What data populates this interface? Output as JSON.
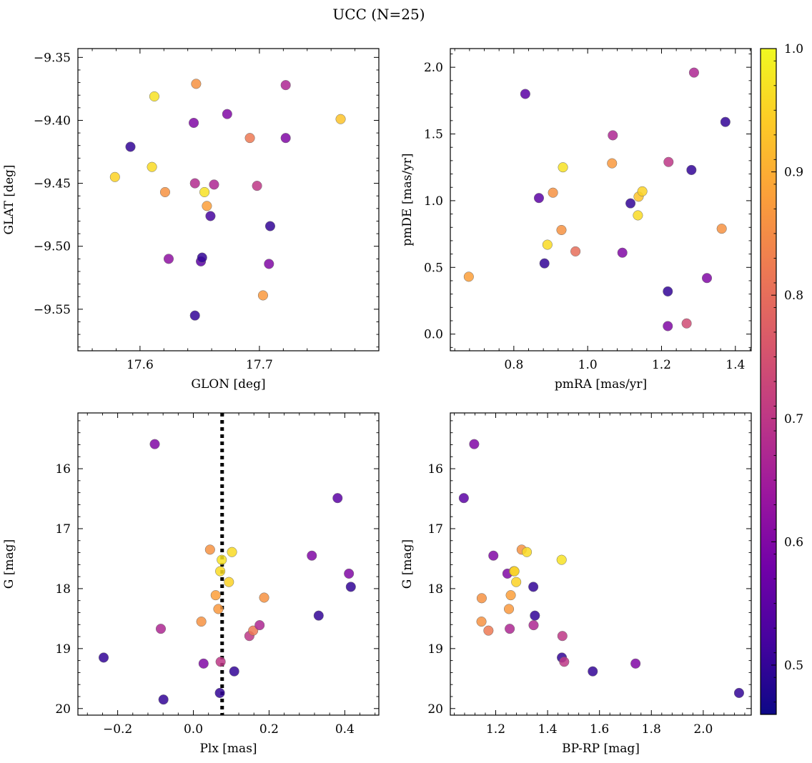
{
  "figure": {
    "title": "UCC (N=25)"
  },
  "colorbar": {
    "ticks": [
      0.5,
      0.6,
      0.7,
      0.8,
      0.9,
      1.0
    ],
    "tick_labels": [
      "0.5",
      "0.6",
      "0.7",
      "0.8",
      "0.9",
      "1.0"
    ],
    "range": [
      0.46,
      1.0
    ],
    "colormap": [
      "#0d0887",
      "#46039f",
      "#7201a8",
      "#9c179e",
      "#bd3786",
      "#d8576b",
      "#ed7953",
      "#fb9f3a",
      "#fdca26",
      "#f0f921"
    ]
  },
  "chart_data": [
    {
      "type": "scatter",
      "name": "glon-glat",
      "xlabel": "GLON [deg]",
      "ylabel": "GLAT [deg]",
      "xlim": [
        17.548,
        17.8
      ],
      "ylim": [
        -9.583,
        -9.343
      ],
      "invert_y": false,
      "xticks": [
        17.6,
        17.7
      ],
      "xtick_labels": [
        "17.6",
        "17.7"
      ],
      "yticks": [
        -9.35,
        -9.4,
        -9.45,
        -9.5,
        -9.55
      ],
      "ytick_labels": [
        "−9.35",
        "−9.40",
        "−9.45",
        "−9.50",
        "−9.55"
      ],
      "x": [
        17.579,
        17.592,
        17.61,
        17.612,
        17.621,
        17.624,
        17.645,
        17.646,
        17.646,
        17.647,
        17.651,
        17.652,
        17.654,
        17.656,
        17.659,
        17.662,
        17.673,
        17.692,
        17.698,
        17.703,
        17.708,
        17.709,
        17.722,
        17.722,
        17.768
      ],
      "y": [
        -9.445,
        -9.421,
        -9.437,
        -9.381,
        -9.457,
        -9.51,
        -9.402,
        -9.45,
        -9.555,
        -9.371,
        -9.512,
        -9.509,
        -9.457,
        -9.468,
        -9.476,
        -9.451,
        -9.395,
        -9.414,
        -9.452,
        -9.539,
        -9.514,
        -9.484,
        -9.414,
        -9.372,
        -9.399
      ],
      "c": [
        0.95,
        0.5,
        0.96,
        0.97,
        0.86,
        0.62,
        0.6,
        0.68,
        0.5,
        0.86,
        0.55,
        0.5,
        0.97,
        0.88,
        0.52,
        0.67,
        0.6,
        0.82,
        0.7,
        0.87,
        0.6,
        0.5,
        0.6,
        0.67,
        0.93
      ]
    },
    {
      "type": "scatter",
      "name": "pm",
      "xlabel": "pmRA [mas/yr]",
      "ylabel": "pmDE [mas/yr]",
      "xlim": [
        0.628,
        1.443
      ],
      "ylim": [
        -0.125,
        2.14
      ],
      "invert_y": false,
      "xticks": [
        0.8,
        1.0,
        1.2,
        1.4
      ],
      "xtick_labels": [
        "0.8",
        "1.0",
        "1.2",
        "1.4"
      ],
      "yticks": [
        0.0,
        0.5,
        1.0,
        1.5,
        2.0
      ],
      "ytick_labels": [
        "0.0",
        "0.5",
        "1.0",
        "1.5",
        "2.0"
      ],
      "x": [
        0.678,
        0.831,
        0.868,
        0.883,
        0.891,
        0.906,
        0.929,
        0.933,
        0.967,
        1.066,
        1.068,
        1.094,
        1.116,
        1.136,
        1.138,
        1.148,
        1.217,
        1.217,
        1.219,
        1.268,
        1.281,
        1.288,
        1.323,
        1.363,
        1.373
      ],
      "y": [
        0.43,
        1.8,
        1.02,
        0.53,
        0.67,
        1.06,
        0.78,
        1.25,
        0.62,
        1.28,
        1.49,
        0.61,
        0.98,
        0.89,
        1.03,
        1.07,
        0.32,
        0.06,
        1.29,
        0.08,
        1.23,
        1.96,
        0.42,
        0.79,
        1.59
      ],
      "c": [
        0.88,
        0.55,
        0.55,
        0.5,
        0.96,
        0.86,
        0.86,
        0.97,
        0.8,
        0.87,
        0.67,
        0.6,
        0.5,
        0.96,
        0.93,
        0.95,
        0.5,
        0.6,
        0.7,
        0.74,
        0.5,
        0.67,
        0.6,
        0.86,
        0.5
      ]
    },
    {
      "type": "scatter",
      "name": "plx-g",
      "xlabel": "Plx [mas]",
      "ylabel": "G [mag]",
      "xlim": [
        -0.305,
        0.49
      ],
      "ylim": [
        15.07,
        20.11
      ],
      "invert_y": true,
      "xticks": [
        -0.2,
        0.0,
        0.2,
        0.4
      ],
      "xtick_labels": [
        "−0.2",
        "0.0",
        "0.2",
        "0.4"
      ],
      "yticks": [
        16,
        17,
        18,
        19,
        20
      ],
      "ytick_labels": [
        "16",
        "17",
        "18",
        "19",
        "20"
      ],
      "vline": 0.076,
      "x": [
        -0.237,
        -0.102,
        -0.086,
        -0.079,
        0.021,
        0.027,
        0.044,
        0.059,
        0.066,
        0.07,
        0.071,
        0.072,
        0.075,
        0.094,
        0.102,
        0.108,
        0.148,
        0.158,
        0.175,
        0.187,
        0.313,
        0.331,
        0.381,
        0.411,
        0.416
      ],
      "y": [
        19.15,
        15.59,
        18.67,
        19.85,
        18.55,
        19.25,
        17.35,
        18.11,
        18.34,
        19.74,
        17.71,
        19.22,
        17.52,
        17.89,
        17.39,
        19.38,
        18.79,
        18.7,
        18.61,
        18.15,
        17.45,
        18.45,
        16.49,
        17.75,
        17.97
      ],
      "c": [
        0.5,
        0.6,
        0.67,
        0.5,
        0.86,
        0.6,
        0.86,
        0.88,
        0.87,
        0.5,
        0.96,
        0.7,
        0.97,
        0.95,
        0.96,
        0.5,
        0.7,
        0.82,
        0.67,
        0.86,
        0.6,
        0.5,
        0.55,
        0.6,
        0.5
      ]
    },
    {
      "type": "scatter",
      "name": "cmd",
      "xlabel": "BP-RP [mag]",
      "ylabel": "G [mag]",
      "xlim": [
        1.025,
        2.185
      ],
      "ylim": [
        15.07,
        20.11
      ],
      "invert_y": true,
      "xticks": [
        1.2,
        1.4,
        1.6,
        1.8,
        2.0
      ],
      "xtick_labels": [
        "1.2",
        "1.4",
        "1.6",
        "1.8",
        "2.0"
      ],
      "yticks": [
        16,
        17,
        18,
        19,
        20
      ],
      "ytick_labels": [
        "16",
        "17",
        "18",
        "19",
        "20"
      ],
      "x": [
        1.077,
        1.117,
        1.145,
        1.146,
        1.172,
        1.191,
        1.245,
        1.251,
        1.254,
        1.258,
        1.27,
        1.272,
        1.279,
        1.3,
        1.32,
        1.345,
        1.346,
        1.351,
        1.454,
        1.455,
        1.457,
        1.464,
        1.574,
        1.739,
        2.138
      ],
      "y": [
        16.49,
        15.59,
        18.55,
        18.16,
        18.7,
        17.45,
        17.75,
        18.34,
        18.67,
        18.11,
        17.71,
        17.71,
        17.89,
        17.35,
        17.39,
        17.97,
        18.61,
        18.45,
        17.52,
        19.15,
        18.79,
        19.22,
        19.38,
        19.25,
        19.74
      ],
      "c": [
        0.55,
        0.6,
        0.86,
        0.86,
        0.82,
        0.6,
        0.6,
        0.87,
        0.67,
        0.88,
        0.86,
        0.96,
        0.95,
        0.86,
        0.96,
        0.5,
        0.67,
        0.5,
        0.97,
        0.5,
        0.7,
        0.7,
        0.5,
        0.6,
        0.5
      ]
    }
  ]
}
